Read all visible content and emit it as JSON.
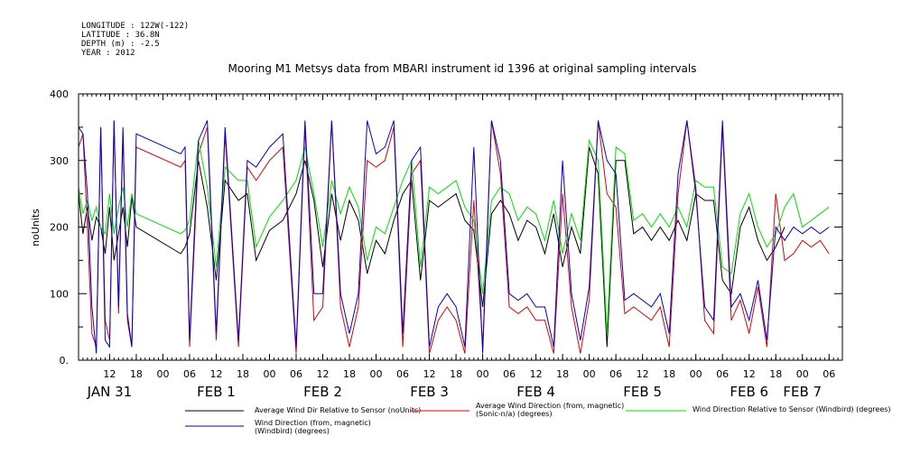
{
  "meta": {
    "longitude": "LONGITUDE : 122W(-122)",
    "latitude": "LATITUDE : 36.8N",
    "depth": "DEPTH (m) : -2.5",
    "year": "YEAR : 2012"
  },
  "chart_data": {
    "type": "line",
    "title": "Mooring M1 Metsys data from MBARI instrument id 1396 at original sampling intervals",
    "ylabel": "noUnits",
    "xlabel": "",
    "ylim": [
      0,
      400
    ],
    "yticks": [
      "0.",
      "100",
      "200",
      "300",
      "400"
    ],
    "xlim": [
      "2012-01-31T05:00",
      "2012-02-07T09:00"
    ],
    "hour_ticks": [
      {
        "t": "2012-01-31T12:00",
        "label": "12"
      },
      {
        "t": "2012-01-31T18:00",
        "label": "18"
      },
      {
        "t": "2012-02-01T00:00",
        "label": "00"
      },
      {
        "t": "2012-02-01T06:00",
        "label": "06"
      },
      {
        "t": "2012-02-01T12:00",
        "label": "12"
      },
      {
        "t": "2012-02-01T18:00",
        "label": "18"
      },
      {
        "t": "2012-02-02T00:00",
        "label": "00"
      },
      {
        "t": "2012-02-02T06:00",
        "label": "06"
      },
      {
        "t": "2012-02-02T12:00",
        "label": "12"
      },
      {
        "t": "2012-02-02T18:00",
        "label": "18"
      },
      {
        "t": "2012-02-03T00:00",
        "label": "00"
      },
      {
        "t": "2012-02-03T06:00",
        "label": "06"
      },
      {
        "t": "2012-02-03T12:00",
        "label": "12"
      },
      {
        "t": "2012-02-03T18:00",
        "label": "18"
      },
      {
        "t": "2012-02-04T00:00",
        "label": "00"
      },
      {
        "t": "2012-02-04T06:00",
        "label": "06"
      },
      {
        "t": "2012-02-04T12:00",
        "label": "12"
      },
      {
        "t": "2012-02-04T18:00",
        "label": "18"
      },
      {
        "t": "2012-02-05T00:00",
        "label": "00"
      },
      {
        "t": "2012-02-05T06:00",
        "label": "06"
      },
      {
        "t": "2012-02-05T12:00",
        "label": "12"
      },
      {
        "t": "2012-02-05T18:00",
        "label": "18"
      },
      {
        "t": "2012-02-06T00:00",
        "label": "00"
      },
      {
        "t": "2012-02-06T06:00",
        "label": "06"
      },
      {
        "t": "2012-02-06T12:00",
        "label": "12"
      },
      {
        "t": "2012-02-06T18:00",
        "label": "18"
      },
      {
        "t": "2012-02-07T00:00",
        "label": "00"
      },
      {
        "t": "2012-02-07T06:00",
        "label": "06"
      }
    ],
    "day_labels": [
      {
        "t": "2012-01-31T12:00",
        "label": "JAN 31"
      },
      {
        "t": "2012-02-01T12:00",
        "label": "FEB  1"
      },
      {
        "t": "2012-02-02T12:00",
        "label": "FEB  2"
      },
      {
        "t": "2012-02-03T12:00",
        "label": "FEB  3"
      },
      {
        "t": "2012-02-04T12:00",
        "label": "FEB  4"
      },
      {
        "t": "2012-02-05T12:00",
        "label": "FEB  5"
      },
      {
        "t": "2012-02-06T12:00",
        "label": "FEB  6"
      },
      {
        "t": "2012-02-07T00:00",
        "label": "FEB  7"
      }
    ],
    "legend_position": "bottom",
    "series": [
      {
        "key": "black",
        "name": "Average Wind Dir Relative to Sensor (noUnits)",
        "color": "#000000",
        "x": [
          "2012-01-31T05:00",
          "2012-01-31T06:00",
          "2012-01-31T07:00",
          "2012-01-31T08:00",
          "2012-01-31T09:00",
          "2012-01-31T10:00",
          "2012-01-31T11:00",
          "2012-01-31T12:00",
          "2012-01-31T13:00",
          "2012-01-31T14:00",
          "2012-01-31T15:00",
          "2012-01-31T16:00",
          "2012-01-31T17:00",
          "2012-01-31T18:00",
          "2012-02-01T04:00",
          "2012-02-01T05:00",
          "2012-02-01T06:00",
          "2012-02-01T08:00",
          "2012-02-01T10:00",
          "2012-02-01T12:00",
          "2012-02-01T14:00",
          "2012-02-01T17:00",
          "2012-02-01T19:00",
          "2012-02-01T21:00",
          "2012-02-02T00:00",
          "2012-02-02T03:00",
          "2012-02-02T06:00",
          "2012-02-02T08:00",
          "2012-02-02T10:00",
          "2012-02-02T12:00",
          "2012-02-02T14:00",
          "2012-02-02T16:00",
          "2012-02-02T18:00",
          "2012-02-02T20:00",
          "2012-02-02T22:00",
          "2012-02-03T00:00",
          "2012-02-03T02:00",
          "2012-02-03T04:00",
          "2012-02-03T06:00",
          "2012-02-03T08:00",
          "2012-02-03T10:00",
          "2012-02-03T12:00",
          "2012-02-03T14:00",
          "2012-02-03T16:00",
          "2012-02-03T18:00",
          "2012-02-03T20:00",
          "2012-02-03T22:00",
          "2012-02-04T00:00",
          "2012-02-04T02:00",
          "2012-02-04T04:00",
          "2012-02-04T06:00",
          "2012-02-04T08:00",
          "2012-02-04T10:00",
          "2012-02-04T12:00",
          "2012-02-04T14:00",
          "2012-02-04T16:00",
          "2012-02-04T18:00",
          "2012-02-04T20:00",
          "2012-02-04T22:00",
          "2012-02-05T00:00",
          "2012-02-05T02:00",
          "2012-02-05T04:00",
          "2012-02-05T06:00",
          "2012-02-05T08:00",
          "2012-02-05T10:00",
          "2012-02-05T12:00",
          "2012-02-05T14:00",
          "2012-02-05T16:00",
          "2012-02-05T18:00",
          "2012-02-05T20:00",
          "2012-02-05T22:00",
          "2012-02-06T00:00",
          "2012-02-06T02:00",
          "2012-02-06T04:00",
          "2012-02-06T06:00",
          "2012-02-06T08:00",
          "2012-02-06T10:00",
          "2012-02-06T12:00",
          "2012-02-06T14:00",
          "2012-02-06T16:00",
          "2012-02-06T18:00",
          "2012-02-06T20:00"
        ],
        "values": [
          250,
          190,
          230,
          180,
          215,
          200,
          160,
          230,
          150,
          190,
          230,
          170,
          245,
          200,
          160,
          170,
          190,
          300,
          230,
          120,
          270,
          240,
          250,
          150,
          195,
          210,
          250,
          300,
          240,
          140,
          250,
          180,
          240,
          210,
          130,
          180,
          160,
          210,
          250,
          270,
          120,
          240,
          230,
          240,
          250,
          210,
          195,
          80,
          220,
          240,
          220,
          180,
          210,
          200,
          160,
          220,
          140,
          200,
          160,
          320,
          280,
          20,
          300,
          300,
          190,
          200,
          180,
          200,
          180,
          210,
          180,
          250,
          240,
          240,
          120,
          100,
          200,
          230,
          180,
          150,
          170,
          200
        ]
      },
      {
        "key": "red",
        "name": "Average Wind Direction (from, magnetic) (Sonic-n/a) (degrees)",
        "color": "#e00000",
        "x": [
          "2012-01-31T05:00",
          "2012-01-31T06:00",
          "2012-01-31T07:00",
          "2012-01-31T08:00",
          "2012-01-31T09:00",
          "2012-01-31T10:00",
          "2012-01-31T11:00",
          "2012-01-31T12:00",
          "2012-01-31T13:00",
          "2012-01-31T14:00",
          "2012-01-31T15:00",
          "2012-01-31T16:00",
          "2012-01-31T17:00",
          "2012-01-31T18:00",
          "2012-02-01T04:00",
          "2012-02-01T05:00",
          "2012-02-01T06:00",
          "2012-02-01T08:00",
          "2012-02-01T10:00",
          "2012-02-01T12:00",
          "2012-02-01T14:00",
          "2012-02-01T17:00",
          "2012-02-01T19:00",
          "2012-02-01T21:00",
          "2012-02-02T00:00",
          "2012-02-02T03:00",
          "2012-02-02T06:00",
          "2012-02-02T08:00",
          "2012-02-02T10:00",
          "2012-02-02T12:00",
          "2012-02-02T14:00",
          "2012-02-02T16:00",
          "2012-02-02T18:00",
          "2012-02-02T20:00",
          "2012-02-02T22:00",
          "2012-02-03T00:00",
          "2012-02-03T02:00",
          "2012-02-03T04:00",
          "2012-02-03T06:00",
          "2012-02-03T08:00",
          "2012-02-03T10:00",
          "2012-02-03T12:00",
          "2012-02-03T14:00",
          "2012-02-03T16:00",
          "2012-02-03T18:00",
          "2012-02-03T20:00",
          "2012-02-03T22:00",
          "2012-02-04T00:00",
          "2012-02-04T02:00",
          "2012-02-04T04:00",
          "2012-02-04T06:00",
          "2012-02-04T08:00",
          "2012-02-04T10:00",
          "2012-02-04T12:00",
          "2012-02-04T14:00",
          "2012-02-04T16:00",
          "2012-02-04T18:00",
          "2012-02-04T20:00",
          "2012-02-04T22:00",
          "2012-02-05T00:00",
          "2012-02-05T02:00",
          "2012-02-05T04:00",
          "2012-02-05T06:00",
          "2012-02-05T08:00",
          "2012-02-05T10:00",
          "2012-02-05T12:00",
          "2012-02-05T14:00",
          "2012-02-05T16:00",
          "2012-02-05T18:00",
          "2012-02-05T20:00",
          "2012-02-05T22:00",
          "2012-02-06T00:00",
          "2012-02-06T02:00",
          "2012-02-06T04:00",
          "2012-02-06T06:00",
          "2012-02-06T08:00",
          "2012-02-06T10:00",
          "2012-02-06T12:00",
          "2012-02-06T14:00",
          "2012-02-06T16:00",
          "2012-02-06T18:00",
          "2012-02-06T20:00",
          "2012-02-06T22:00",
          "2012-02-07T00:00",
          "2012-02-07T02:00",
          "2012-02-07T04:00",
          "2012-02-07T06:00"
        ],
        "values": [
          320,
          340,
          200,
          40,
          20,
          350,
          60,
          30,
          360,
          70,
          340,
          60,
          20,
          320,
          290,
          300,
          20,
          310,
          350,
          30,
          340,
          20,
          290,
          270,
          300,
          320,
          10,
          350,
          60,
          80,
          360,
          80,
          20,
          80,
          300,
          290,
          300,
          350,
          20,
          280,
          300,
          10,
          60,
          80,
          60,
          10,
          240,
          20,
          360,
          280,
          80,
          70,
          80,
          60,
          60,
          10,
          250,
          80,
          10,
          90,
          360,
          250,
          230,
          70,
          80,
          70,
          60,
          80,
          20,
          250,
          360,
          260,
          60,
          40,
          350,
          60,
          90,
          40,
          110,
          20,
          250,
          150,
          160,
          180,
          170,
          180,
          160
        ]
      },
      {
        "key": "green",
        "name": "Wind Direction Relative to Sensor (Windbird) (degrees)",
        "color": "#00e000",
        "x": [
          "2012-01-31T05:00",
          "2012-01-31T06:00",
          "2012-01-31T07:00",
          "2012-01-31T08:00",
          "2012-01-31T09:00",
          "2012-01-31T10:00",
          "2012-01-31T11:00",
          "2012-01-31T12:00",
          "2012-01-31T13:00",
          "2012-01-31T14:00",
          "2012-01-31T15:00",
          "2012-01-31T16:00",
          "2012-01-31T17:00",
          "2012-01-31T18:00",
          "2012-02-01T04:00",
          "2012-02-01T05:00",
          "2012-02-01T06:00",
          "2012-02-01T08:00",
          "2012-02-01T10:00",
          "2012-02-01T12:00",
          "2012-02-01T14:00",
          "2012-02-01T17:00",
          "2012-02-01T19:00",
          "2012-02-01T21:00",
          "2012-02-02T00:00",
          "2012-02-02T03:00",
          "2012-02-02T06:00",
          "2012-02-02T08:00",
          "2012-02-02T10:00",
          "2012-02-02T12:00",
          "2012-02-02T14:00",
          "2012-02-02T16:00",
          "2012-02-02T18:00",
          "2012-02-02T20:00",
          "2012-02-02T22:00",
          "2012-02-03T00:00",
          "2012-02-03T02:00",
          "2012-02-03T04:00",
          "2012-02-03T06:00",
          "2012-02-03T08:00",
          "2012-02-03T10:00",
          "2012-02-03T12:00",
          "2012-02-03T14:00",
          "2012-02-03T16:00",
          "2012-02-03T18:00",
          "2012-02-03T20:00",
          "2012-02-03T22:00",
          "2012-02-04T00:00",
          "2012-02-04T02:00",
          "2012-02-04T04:00",
          "2012-02-04T06:00",
          "2012-02-04T08:00",
          "2012-02-04T10:00",
          "2012-02-04T12:00",
          "2012-02-04T14:00",
          "2012-02-04T16:00",
          "2012-02-04T18:00",
          "2012-02-04T20:00",
          "2012-02-04T22:00",
          "2012-02-05T00:00",
          "2012-02-05T02:00",
          "2012-02-05T04:00",
          "2012-02-05T06:00",
          "2012-02-05T08:00",
          "2012-02-05T10:00",
          "2012-02-05T12:00",
          "2012-02-05T14:00",
          "2012-02-05T16:00",
          "2012-02-05T18:00",
          "2012-02-05T20:00",
          "2012-02-05T22:00",
          "2012-02-06T00:00",
          "2012-02-06T02:00",
          "2012-02-06T04:00",
          "2012-02-06T06:00",
          "2012-02-06T08:00",
          "2012-02-06T10:00",
          "2012-02-06T12:00",
          "2012-02-06T14:00",
          "2012-02-06T16:00",
          "2012-02-06T18:00",
          "2012-02-06T20:00",
          "2012-02-06T22:00",
          "2012-02-07T00:00",
          "2012-02-07T02:00",
          "2012-02-07T04:00",
          "2012-02-07T06:00"
        ],
        "values": [
          260,
          220,
          240,
          210,
          230,
          200,
          190,
          250,
          190,
          230,
          260,
          200,
          250,
          220,
          190,
          195,
          210,
          330,
          260,
          140,
          290,
          270,
          270,
          170,
          215,
          240,
          270,
          320,
          250,
          170,
          270,
          220,
          260,
          230,
          150,
          200,
          190,
          230,
          270,
          300,
          140,
          260,
          250,
          260,
          270,
          230,
          210,
          100,
          240,
          260,
          250,
          210,
          230,
          220,
          180,
          240,
          160,
          220,
          180,
          330,
          300,
          40,
          320,
          310,
          210,
          220,
          200,
          220,
          200,
          230,
          200,
          270,
          260,
          260,
          140,
          130,
          220,
          250,
          200,
          170,
          190,
          230,
          250,
          200,
          210,
          220,
          230
        ]
      },
      {
        "key": "blue",
        "name": "Wind Direction (from, magnetic) (Windbird) (degrees)",
        "color": "#0000d0",
        "x": [
          "2012-01-31T05:00",
          "2012-01-31T06:00",
          "2012-01-31T07:00",
          "2012-01-31T08:00",
          "2012-01-31T09:00",
          "2012-01-31T10:00",
          "2012-01-31T11:00",
          "2012-01-31T12:00",
          "2012-01-31T13:00",
          "2012-01-31T14:00",
          "2012-01-31T15:00",
          "2012-01-31T16:00",
          "2012-01-31T17:00",
          "2012-01-31T18:00",
          "2012-02-01T04:00",
          "2012-02-01T05:00",
          "2012-02-01T06:00",
          "2012-02-01T08:00",
          "2012-02-01T10:00",
          "2012-02-01T12:00",
          "2012-02-01T14:00",
          "2012-02-01T17:00",
          "2012-02-01T19:00",
          "2012-02-01T21:00",
          "2012-02-02T00:00",
          "2012-02-02T03:00",
          "2012-02-02T06:00",
          "2012-02-02T08:00",
          "2012-02-02T10:00",
          "2012-02-02T12:00",
          "2012-02-02T14:00",
          "2012-02-02T16:00",
          "2012-02-02T18:00",
          "2012-02-02T20:00",
          "2012-02-02T22:00",
          "2012-02-03T00:00",
          "2012-02-03T02:00",
          "2012-02-03T04:00",
          "2012-02-03T06:00",
          "2012-02-03T08:00",
          "2012-02-03T10:00",
          "2012-02-03T12:00",
          "2012-02-03T14:00",
          "2012-02-03T16:00",
          "2012-02-03T18:00",
          "2012-02-03T20:00",
          "2012-02-03T22:00",
          "2012-02-04T00:00",
          "2012-02-04T02:00",
          "2012-02-04T04:00",
          "2012-02-04T06:00",
          "2012-02-04T08:00",
          "2012-02-04T10:00",
          "2012-02-04T12:00",
          "2012-02-04T14:00",
          "2012-02-04T16:00",
          "2012-02-04T18:00",
          "2012-02-04T20:00",
          "2012-02-04T22:00",
          "2012-02-05T00:00",
          "2012-02-05T02:00",
          "2012-02-05T04:00",
          "2012-02-05T06:00",
          "2012-02-05T08:00",
          "2012-02-05T10:00",
          "2012-02-05T12:00",
          "2012-02-05T14:00",
          "2012-02-05T16:00",
          "2012-02-05T18:00",
          "2012-02-05T20:00",
          "2012-02-05T22:00",
          "2012-02-06T00:00",
          "2012-02-06T02:00",
          "2012-02-06T04:00",
          "2012-02-06T06:00",
          "2012-02-06T08:00",
          "2012-02-06T10:00",
          "2012-02-06T12:00",
          "2012-02-06T14:00",
          "2012-02-06T16:00",
          "2012-02-06T18:00",
          "2012-02-06T20:00",
          "2012-02-06T22:00",
          "2012-02-07T00:00",
          "2012-02-07T02:00",
          "2012-02-07T04:00",
          "2012-02-07T06:00"
        ],
        "values": [
          350,
          340,
          250,
          80,
          10,
          350,
          30,
          20,
          360,
          80,
          350,
          70,
          20,
          340,
          310,
          320,
          30,
          330,
          360,
          40,
          350,
          30,
          300,
          290,
          320,
          340,
          20,
          360,
          100,
          100,
          360,
          100,
          40,
          100,
          360,
          310,
          320,
          360,
          40,
          300,
          320,
          20,
          80,
          100,
          80,
          20,
          320,
          10,
          360,
          300,
          100,
          90,
          100,
          80,
          80,
          20,
          300,
          100,
          30,
          110,
          360,
          300,
          280,
          90,
          100,
          90,
          80,
          100,
          40,
          280,
          360,
          250,
          80,
          60,
          360,
          80,
          100,
          60,
          120,
          30,
          200,
          180,
          200,
          190,
          200,
          190,
          200
        ]
      }
    ]
  }
}
